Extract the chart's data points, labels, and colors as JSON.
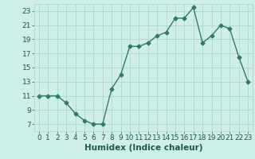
{
  "x": [
    0,
    1,
    2,
    3,
    4,
    5,
    6,
    7,
    8,
    9,
    10,
    11,
    12,
    13,
    14,
    15,
    16,
    17,
    18,
    19,
    20,
    21,
    22,
    23
  ],
  "y": [
    11,
    11,
    11,
    10,
    8.5,
    7.5,
    7,
    7,
    12,
    14,
    18,
    18,
    18.5,
    19.5,
    20,
    22,
    22,
    23.5,
    18.5,
    19.5,
    21,
    20.5,
    16.5,
    13
  ],
  "xlabel": "Humidex (Indice chaleur)",
  "xlim": [
    -0.5,
    23.5
  ],
  "ylim": [
    6,
    24
  ],
  "yticks": [
    7,
    9,
    11,
    13,
    15,
    17,
    19,
    21,
    23
  ],
  "xticks": [
    0,
    1,
    2,
    3,
    4,
    5,
    6,
    7,
    8,
    9,
    10,
    11,
    12,
    13,
    14,
    15,
    16,
    17,
    18,
    19,
    20,
    21,
    22,
    23
  ],
  "line_color": "#2e7b6e",
  "marker": "D",
  "marker_size": 2.5,
  "bg_color": "#ceeee8",
  "grid_color": "#aad8d0",
  "tick_label_fontsize": 6.5,
  "xlabel_fontsize": 7.5
}
